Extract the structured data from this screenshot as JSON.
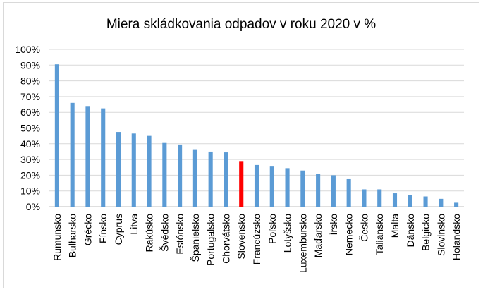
{
  "chart_data": {
    "type": "bar",
    "title": "Miera skládkovania odpadov v roku 2020 v %",
    "xlabel": "",
    "ylabel": "",
    "ylim": [
      0,
      100
    ],
    "y_ticks": [
      "0%",
      "10%",
      "20%",
      "30%",
      "40%",
      "50%",
      "60%",
      "70%",
      "80%",
      "90%",
      "100%"
    ],
    "grid": true,
    "legend": "none",
    "colors": {
      "default": "#5b9bd5",
      "highlight": "#ff0000"
    },
    "highlight_category": "Slovensko",
    "categories": [
      "Rumunsko",
      "Bulharsko",
      "Grécko",
      "Fínsko",
      "Cyprus",
      "Litva",
      "Rakúsko",
      "Švédsko",
      "Estónsko",
      "Španielsko",
      "Portugalsko",
      "Chorvátsko",
      "Slovensko",
      "Francúzsko",
      "Poľsko",
      "Lotyšsko",
      "Luxembursko",
      "Maďarsko",
      "Írsko",
      "Nemecko",
      "Česko",
      "Taliansko",
      "Malta",
      "Dánsko",
      "Belgicko",
      "Slovinsko",
      "Holandsko"
    ],
    "values": [
      90.5,
      66,
      64,
      62.5,
      47.5,
      46.5,
      45,
      40.5,
      39.5,
      36.5,
      35,
      34.5,
      29,
      26.5,
      25.5,
      24.5,
      23,
      21,
      20,
      17.5,
      11,
      11,
      8.5,
      7.5,
      6.5,
      5,
      2.5
    ]
  }
}
